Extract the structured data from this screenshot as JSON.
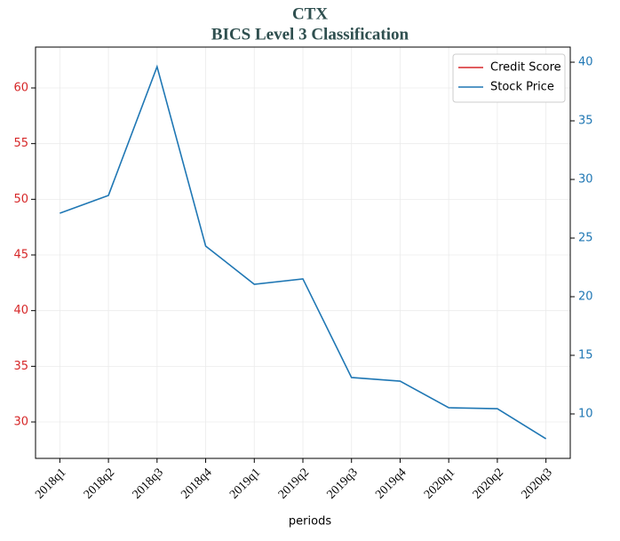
{
  "chart_data": {
    "type": "line",
    "title": "CTX",
    "subtitle": "BICS Level 3 Classification",
    "xlabel": "periods",
    "categories": [
      "2018q1",
      "2018q2",
      "2018q3",
      "2018q4",
      "2019q1",
      "2019q2",
      "2019q3",
      "2019q4",
      "2020q1",
      "2020q2",
      "2020q3"
    ],
    "series": [
      {
        "name": "Credit Score",
        "color": "#d62728",
        "axis": "y",
        "values": [
          null,
          null,
          null,
          null,
          null,
          null,
          null,
          null,
          null,
          null,
          null
        ]
      },
      {
        "name": "Stock Price",
        "color": "#1f77b4",
        "axis": "y2",
        "values": [
          27.12,
          28.64,
          39.62,
          24.32,
          21.06,
          21.52,
          13.11,
          12.8,
          10.53,
          10.45,
          7.88
        ]
      }
    ],
    "ylim": [
      26.73,
      63.67
    ],
    "yticks": [
      30,
      35,
      40,
      45,
      50,
      55,
      60
    ],
    "y2lim": [
      6.21,
      41.29
    ],
    "y2ticks": [
      10,
      15,
      20,
      25,
      30,
      35,
      40
    ],
    "grid": true,
    "legend": "upper right"
  }
}
